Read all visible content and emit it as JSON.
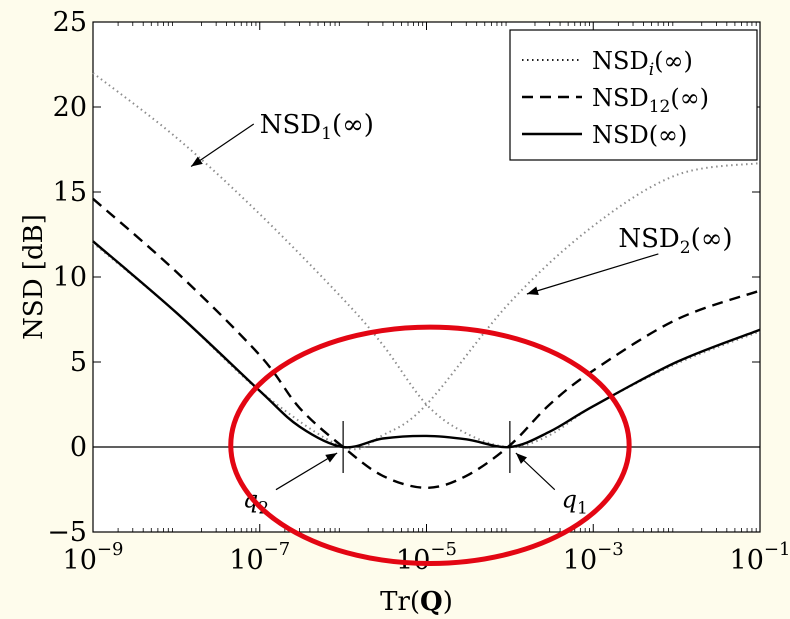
{
  "chart_data": {
    "type": "line",
    "xlabel": "Tr(Q)",
    "xlabel_parts": {
      "main": "Tr(",
      "bold": "Q",
      "close": ")"
    },
    "ylabel": "NSD [dB]",
    "xscale": "log",
    "xlim": [
      1e-09,
      0.1
    ],
    "ylim": [
      -5,
      25
    ],
    "xticks": [
      {
        "value": 1e-09,
        "base": "10",
        "exp": "−9"
      },
      {
        "value": 1e-07,
        "base": "10",
        "exp": "−7"
      },
      {
        "value": 1e-05,
        "base": "10",
        "exp": "−5"
      },
      {
        "value": 0.001,
        "base": "10",
        "exp": "−3"
      },
      {
        "value": 0.1,
        "base": "10",
        "exp": "−1"
      }
    ],
    "yticks": [
      {
        "value": -5,
        "label": "−5"
      },
      {
        "value": 0,
        "label": "0"
      },
      {
        "value": 5,
        "label": "5"
      },
      {
        "value": 10,
        "label": "10"
      },
      {
        "value": 15,
        "label": "15"
      },
      {
        "value": 20,
        "label": "20"
      },
      {
        "value": 25,
        "label": "25"
      }
    ],
    "grid": false,
    "legend_position": "top-right",
    "legend": [
      {
        "label_main": "NSD",
        "label_sub": "i",
        "label_tail": "(∞)",
        "style": "dotted"
      },
      {
        "label_main": "NSD",
        "label_sub": "12",
        "label_tail": "(∞)",
        "style": "dashed"
      },
      {
        "label_main": "NSD",
        "label_sub": "",
        "label_tail": "(∞)",
        "style": "solid"
      }
    ],
    "series": [
      {
        "name": "NSD1(∞)",
        "style": "dotted",
        "color": "#8c8c8c",
        "points": [
          [
            1e-09,
            22.0
          ],
          [
            1e-08,
            18.2
          ],
          [
            1e-07,
            13.7
          ],
          [
            1e-06,
            8.7
          ],
          [
            3e-06,
            6.0
          ],
          [
            1e-05,
            2.5
          ],
          [
            3e-05,
            0.8
          ],
          [
            0.0001,
            0.0
          ],
          [
            0.0003,
            0.7
          ],
          [
            0.001,
            2.4
          ],
          [
            0.01,
            4.9
          ],
          [
            0.1,
            6.8
          ]
        ]
      },
      {
        "name": "NSD2(∞)",
        "style": "dotted",
        "color": "#8c8c8c",
        "points": [
          [
            1e-09,
            12.0
          ],
          [
            1e-08,
            7.9
          ],
          [
            1e-07,
            3.3
          ],
          [
            1e-06,
            0.0
          ],
          [
            3e-06,
            0.7
          ],
          [
            1e-05,
            2.5
          ],
          [
            0.0001,
            8.5
          ],
          [
            0.001,
            13.0
          ],
          [
            0.01,
            16.0
          ],
          [
            0.1,
            16.7
          ]
        ]
      },
      {
        "name": "NSD12(∞)",
        "style": "dashed",
        "color": "#000000",
        "points": [
          [
            1e-09,
            14.6
          ],
          [
            1e-08,
            10.3
          ],
          [
            1e-07,
            5.4
          ],
          [
            3e-07,
            2.3
          ],
          [
            1e-06,
            0.0
          ],
          [
            3e-06,
            -1.7
          ],
          [
            1e-05,
            -2.4
          ],
          [
            3e-05,
            -1.7
          ],
          [
            0.0001,
            0.1
          ],
          [
            0.0003,
            2.5
          ],
          [
            0.001,
            4.5
          ],
          [
            0.01,
            7.5
          ],
          [
            0.1,
            9.2
          ]
        ]
      },
      {
        "name": "NSD(∞)",
        "style": "solid",
        "color": "#000000",
        "points": [
          [
            1e-09,
            12.1
          ],
          [
            1e-08,
            7.9
          ],
          [
            1e-07,
            3.3
          ],
          [
            3e-07,
            1.2
          ],
          [
            1e-06,
            0.0
          ],
          [
            3e-06,
            0.5
          ],
          [
            1e-05,
            0.65
          ],
          [
            3e-05,
            0.45
          ],
          [
            0.0001,
            0.0
          ],
          [
            0.0003,
            0.9
          ],
          [
            0.001,
            2.4
          ],
          [
            0.01,
            5.0
          ],
          [
            0.1,
            6.9
          ]
        ]
      }
    ],
    "annotations": [
      {
        "id": "nsd1",
        "main": "NSD",
        "sub": "1",
        "tail": "(∞)",
        "text_at": [
          1e-07,
          19.0
        ],
        "arrow_to": [
          1.5e-08,
          16.5
        ]
      },
      {
        "id": "nsd2",
        "main": "NSD",
        "sub": "2",
        "tail": "(∞)",
        "text_at": [
          0.002,
          12.3
        ],
        "arrow_to": [
          0.00016,
          9.0
        ]
      },
      {
        "id": "q2",
        "label": "q",
        "sub": "2",
        "text_at": [
          9e-08,
          -3.1
        ],
        "arrow_to": [
          1e-06,
          0
        ]
      },
      {
        "id": "q1",
        "label": "q",
        "sub": "1",
        "text_at": [
          0.0006,
          -3.1
        ],
        "arrow_to": [
          0.0001,
          0
        ]
      }
    ],
    "markers": [
      1e-06,
      0.0001
    ],
    "highlight": {
      "shape": "ellipse",
      "color": "#e30613",
      "center": [
        1.1e-05,
        0.1
      ],
      "x_range": [
        5e-08,
        0.003
      ],
      "y_range": [
        -6.8,
        7.1
      ]
    }
  }
}
